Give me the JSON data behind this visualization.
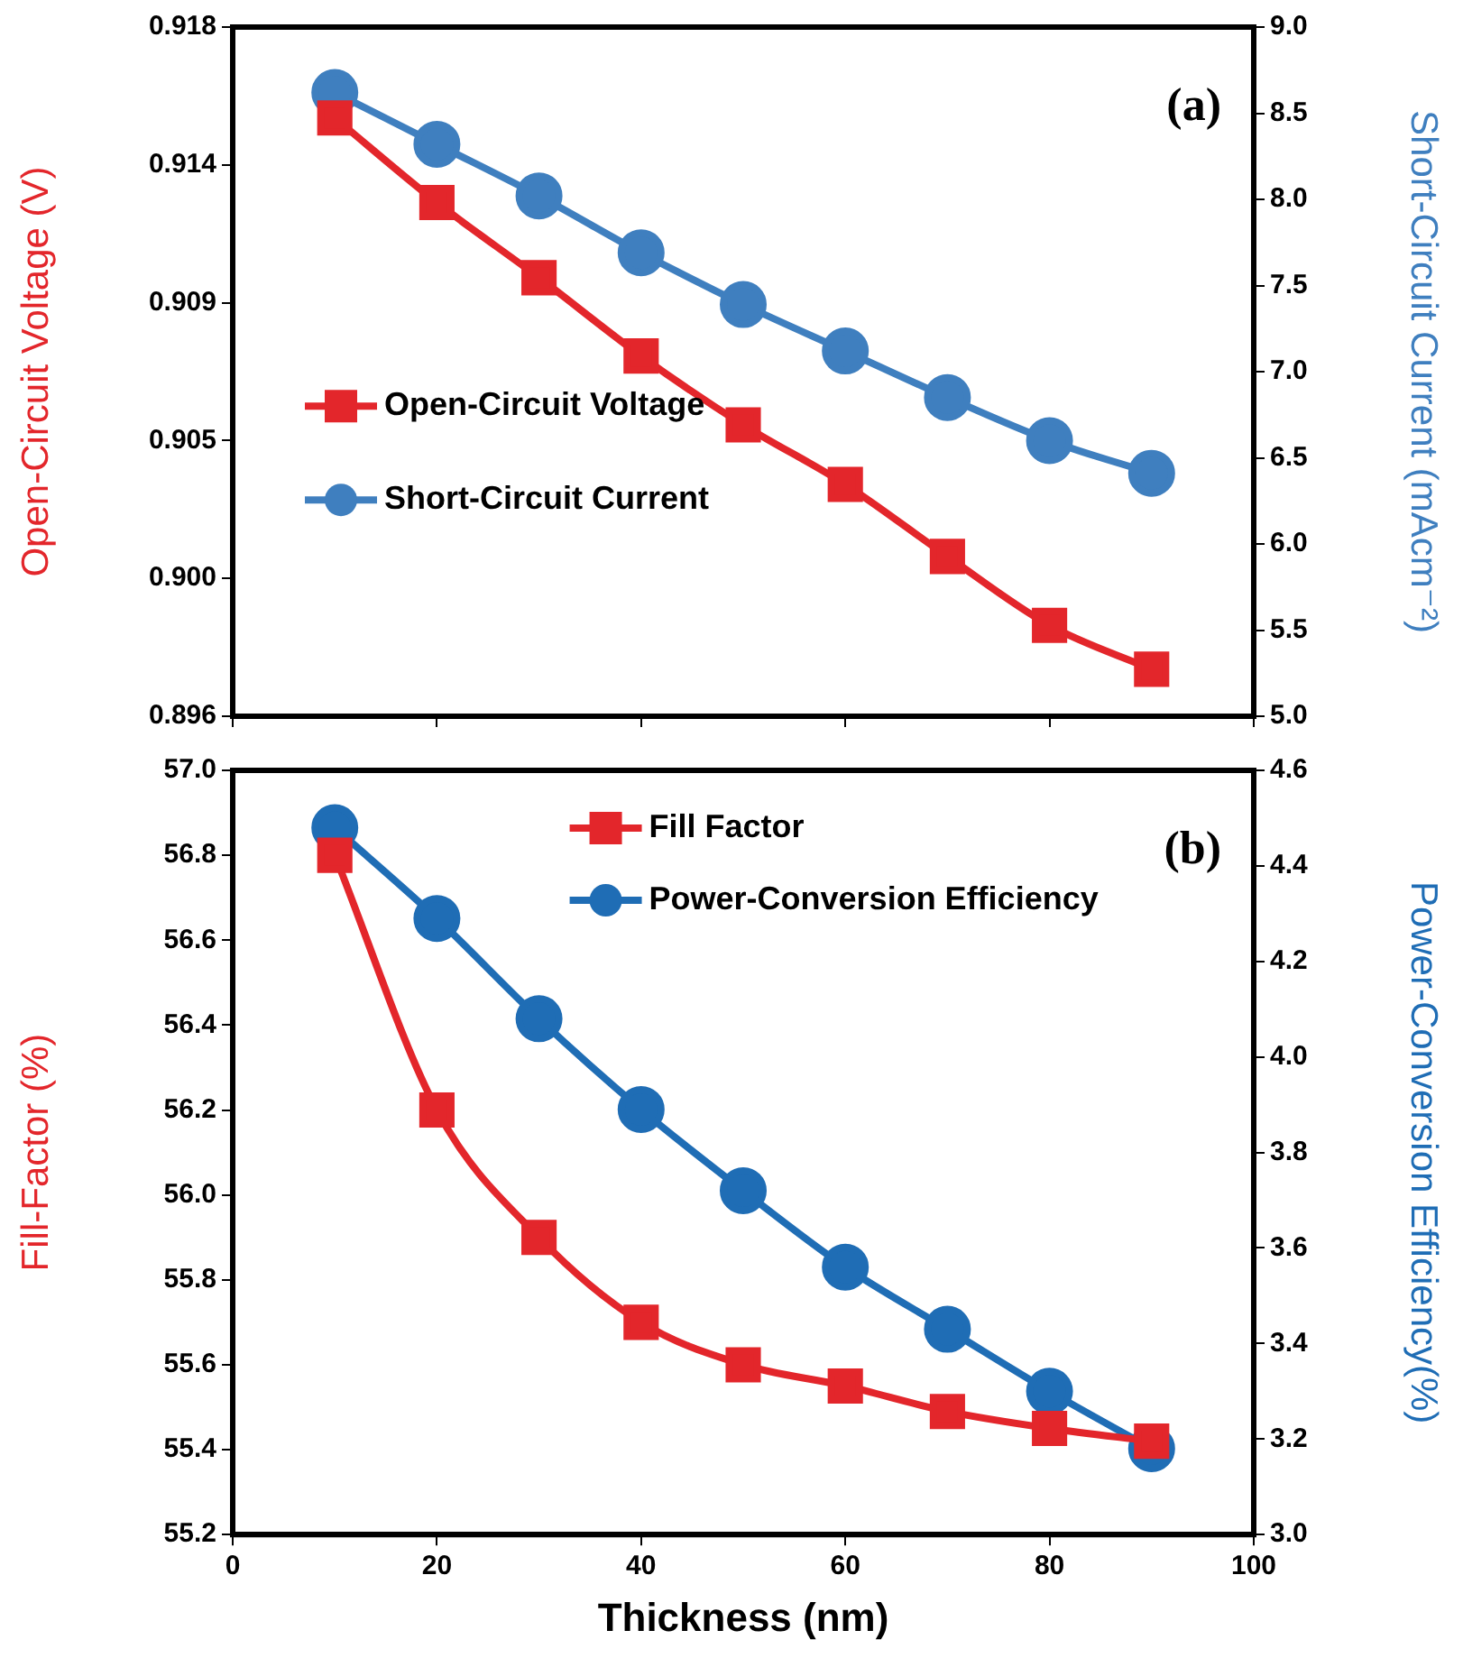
{
  "chart_data": [
    {
      "type": "line",
      "x": [
        10,
        20,
        30,
        40,
        50,
        60,
        70,
        80,
        90
      ],
      "ylabel": "Open-Circuit Voltage (V)",
      "y2label": "Short-Circuit Current (mAcm⁻²)",
      "series": [
        {
          "name": "Open-Circuit Voltage",
          "color": "#e3262b",
          "marker": "square",
          "values": [
            0.9151,
            0.9124,
            0.91,
            0.9075,
            0.9053,
            0.9034,
            0.9011,
            0.8989,
            0.8975
          ]
        },
        {
          "name": "Short-Circuit Current",
          "color": "#3f7fbf",
          "marker": "circle",
          "axis": "y2",
          "values": [
            8.62,
            8.32,
            8.02,
            7.69,
            7.39,
            7.12,
            6.85,
            6.6,
            6.41
          ]
        }
      ],
      "xlim": [
        0,
        100
      ],
      "xticks": [
        0,
        20,
        40,
        60,
        80,
        100
      ],
      "ylim": [
        0.896,
        0.918
      ],
      "yticks": [
        0.896,
        {
          "value": 0.9004,
          "label": "0.900"
        },
        {
          "value": 0.9048,
          "label": "0.905"
        },
        {
          "value": 0.9092,
          "label": "0.909"
        },
        {
          "value": 0.9136,
          "label": "0.914"
        },
        0.918
      ],
      "y2lim": [
        5,
        9
      ],
      "y2ticks": [
        {
          "value": 5,
          "label": "5.0"
        },
        5.5,
        {
          "value": 6,
          "label": "6.0"
        },
        6.5,
        {
          "value": 7,
          "label": "7.0"
        },
        7.5,
        {
          "value": 8,
          "label": "8.0"
        },
        8.5,
        {
          "value": 9,
          "label": "9.0"
        }
      ],
      "tick_labels": "y",
      "grid": false,
      "legend": "left",
      "line_style": "solid",
      "annotations": [
        "(a)"
      ]
    },
    {
      "type": "line",
      "x": [
        10,
        20,
        30,
        40,
        50,
        60,
        70,
        80,
        90
      ],
      "xlabel": "Thickness (nm)",
      "ylabel": "Fill-Factor (%)",
      "y2label": "Power-Conversion Efficiency(%)",
      "series": [
        {
          "name": "Fill Factor",
          "color": "#e3262b",
          "marker": "square",
          "values": [
            56.8,
            56.2,
            55.9,
            55.7,
            55.6,
            55.55,
            55.49,
            55.45,
            55.42
          ]
        },
        {
          "name": "Power-Conversion Efficiency",
          "color": "#1f6db5",
          "marker": "circle",
          "axis": "y2",
          "values": [
            4.48,
            4.29,
            4.08,
            3.89,
            3.72,
            3.56,
            3.43,
            3.3,
            3.18
          ]
        }
      ],
      "xlim": [
        0,
        100
      ],
      "xticks": [
        0,
        20,
        40,
        60,
        80,
        100
      ],
      "ylim": [
        55.2,
        57
      ],
      "yticks": [
        55.2,
        55.4,
        55.6,
        55.8,
        {
          "value": 56,
          "label": "56.0"
        },
        56.2,
        56.4,
        56.6,
        56.8,
        {
          "value": 57,
          "label": "57.0"
        }
      ],
      "y2lim": [
        3,
        4.6
      ],
      "y2ticks": [
        {
          "value": 3,
          "label": "3.0"
        },
        3.2,
        3.4,
        3.6,
        3.8,
        {
          "value": 4,
          "label": "4.0"
        },
        4.2,
        4.4,
        4.6
      ],
      "grid": false,
      "legend": "top",
      "line_style": "solid",
      "annotations": [
        "(b)"
      ]
    }
  ]
}
